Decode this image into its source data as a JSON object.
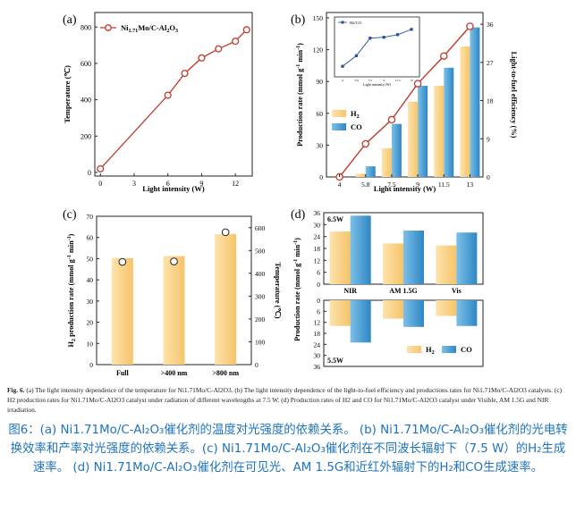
{
  "caption": {
    "label": "Fig. 6.",
    "text": "(a) The light intensity dependence of the temperature for Ni1.71Mo/C-Al2O3. (b) The light intensity dependence of the light-to-fuel efficiency and productions rates for Ni1.71Mo/C-Al2O3 catalysts. (c) H2 production rates for Ni1.71Mo/C-Al2O3 catalyst under radiation of different wavelengths at 7.5 W. (d) Production rates of H2 and CO for Ni1.71Mo/C-Al2O3 catalyst under Visible, AM 1.5G and NIR irradiation.",
    "zh": "图6：(a) Ni1.71Mo/C-Al₂O₃催化剂的温度对光强度的依赖关系。 (b) Ni1.71Mo/C-Al₂O₃催化剂的光电转换效率和产率对光强度的依赖关系。(c) Ni1.71Mo/C-Al₂O₃催化剂在不同波长辐射下（7.5 W）的H₂生成速率。 (d) Ni1.71Mo/C-Al₂O₃催化剂在可见光、AM 1.5G和近红外辐射下的H₂和CO生成速率。"
  },
  "colors": {
    "h2": "#f9cf84",
    "co": "#4a9fd4",
    "marker_line": "#c0392b",
    "axis": "#222222"
  },
  "chart_data": [
    {
      "panel": "(a)",
      "type": "line",
      "xlabel": "Light intensity (W)",
      "ylabel": "Temperature (℃)",
      "xlim": [
        -0.5,
        13.5
      ],
      "ylim": [
        -20,
        880
      ],
      "xticks": [
        0,
        3,
        6,
        9,
        12
      ],
      "yticks": [
        0,
        200,
        400,
        600,
        800
      ],
      "legend": "Ni1.71Mo/C-Al2O3",
      "x": [
        0,
        6,
        7.5,
        9,
        10.5,
        12,
        13
      ],
      "y": [
        20,
        425,
        545,
        630,
        680,
        722,
        785
      ]
    },
    {
      "panel": "(b)",
      "type": "bar",
      "xlabel": "Light intensity (W)",
      "ylabel": "Production rate (mmol g⁻¹ min⁻¹)",
      "ylabel_right": "Light-to-fuel efficiency (%)",
      "categories": [
        "4",
        "5.8",
        "7.5",
        "9",
        "11.5",
        "13"
      ],
      "ylim": [
        0,
        150
      ],
      "yticks": [
        0,
        30,
        60,
        90,
        120,
        150
      ],
      "ylim_right": [
        0,
        37.5
      ],
      "yticks_right": [
        0,
        9,
        18,
        27,
        36
      ],
      "series": [
        {
          "name": "H2",
          "values": [
            0,
            3,
            27,
            71,
            86,
            123
          ]
        },
        {
          "name": "CO",
          "values": [
            0,
            10,
            50,
            86,
            103,
            141
          ]
        }
      ],
      "efficiency": [
        0,
        7.8,
        13.5,
        22,
        28.5,
        35.5
      ],
      "inset": {
        "legend": "H2/CO",
        "xlabel": "Light intensity (W)",
        "xticks": [
          "4",
          "5.8",
          "7.5",
          "9",
          "11.5",
          "13"
        ],
        "values": [
          0.3,
          0.42,
          0.62,
          0.63,
          0.66,
          0.72
        ]
      }
    },
    {
      "panel": "(c)",
      "type": "bar",
      "ylabel": "H2 production rate (mmol g⁻¹ min⁻¹)",
      "ylabel_right": "Temperature (℃)",
      "categories": [
        "Full",
        ">400 nm",
        ">800 nm"
      ],
      "ylim": [
        0,
        70
      ],
      "yticks": [
        0,
        10,
        20,
        30,
        40,
        50,
        60,
        70
      ],
      "ylim_right": [
        0,
        650
      ],
      "yticks_right": [
        0,
        100,
        200,
        300,
        400,
        500,
        600
      ],
      "values": [
        50.2,
        51.2,
        61.6
      ],
      "temperature": [
        450,
        452,
        580
      ]
    },
    {
      "panel": "(d)",
      "type": "bar",
      "ylabel": "Production rate (mmol g⁻¹ min⁻¹)",
      "categories": [
        "NIR",
        "AM 1.5G",
        "Vis"
      ],
      "top": {
        "label": "6.5W",
        "ylim": [
          0,
          36
        ],
        "yticks": [
          0,
          6,
          12,
          18,
          24,
          30,
          36
        ],
        "series": [
          {
            "name": "H2",
            "values": [
              26.5,
              20.5,
              19.5
            ]
          },
          {
            "name": "CO",
            "values": [
              34.5,
              27,
              26
            ]
          }
        ]
      },
      "bottom": {
        "label": "5.5W",
        "ylim": [
          36,
          0
        ],
        "yticks": [
          0,
          6,
          12,
          18,
          24,
          30,
          36
        ],
        "series": [
          {
            "name": "H2",
            "values": [
              14,
              10,
              8.5
            ]
          },
          {
            "name": "CO",
            "values": [
              23,
              14.5,
              14
            ]
          }
        ]
      }
    }
  ]
}
